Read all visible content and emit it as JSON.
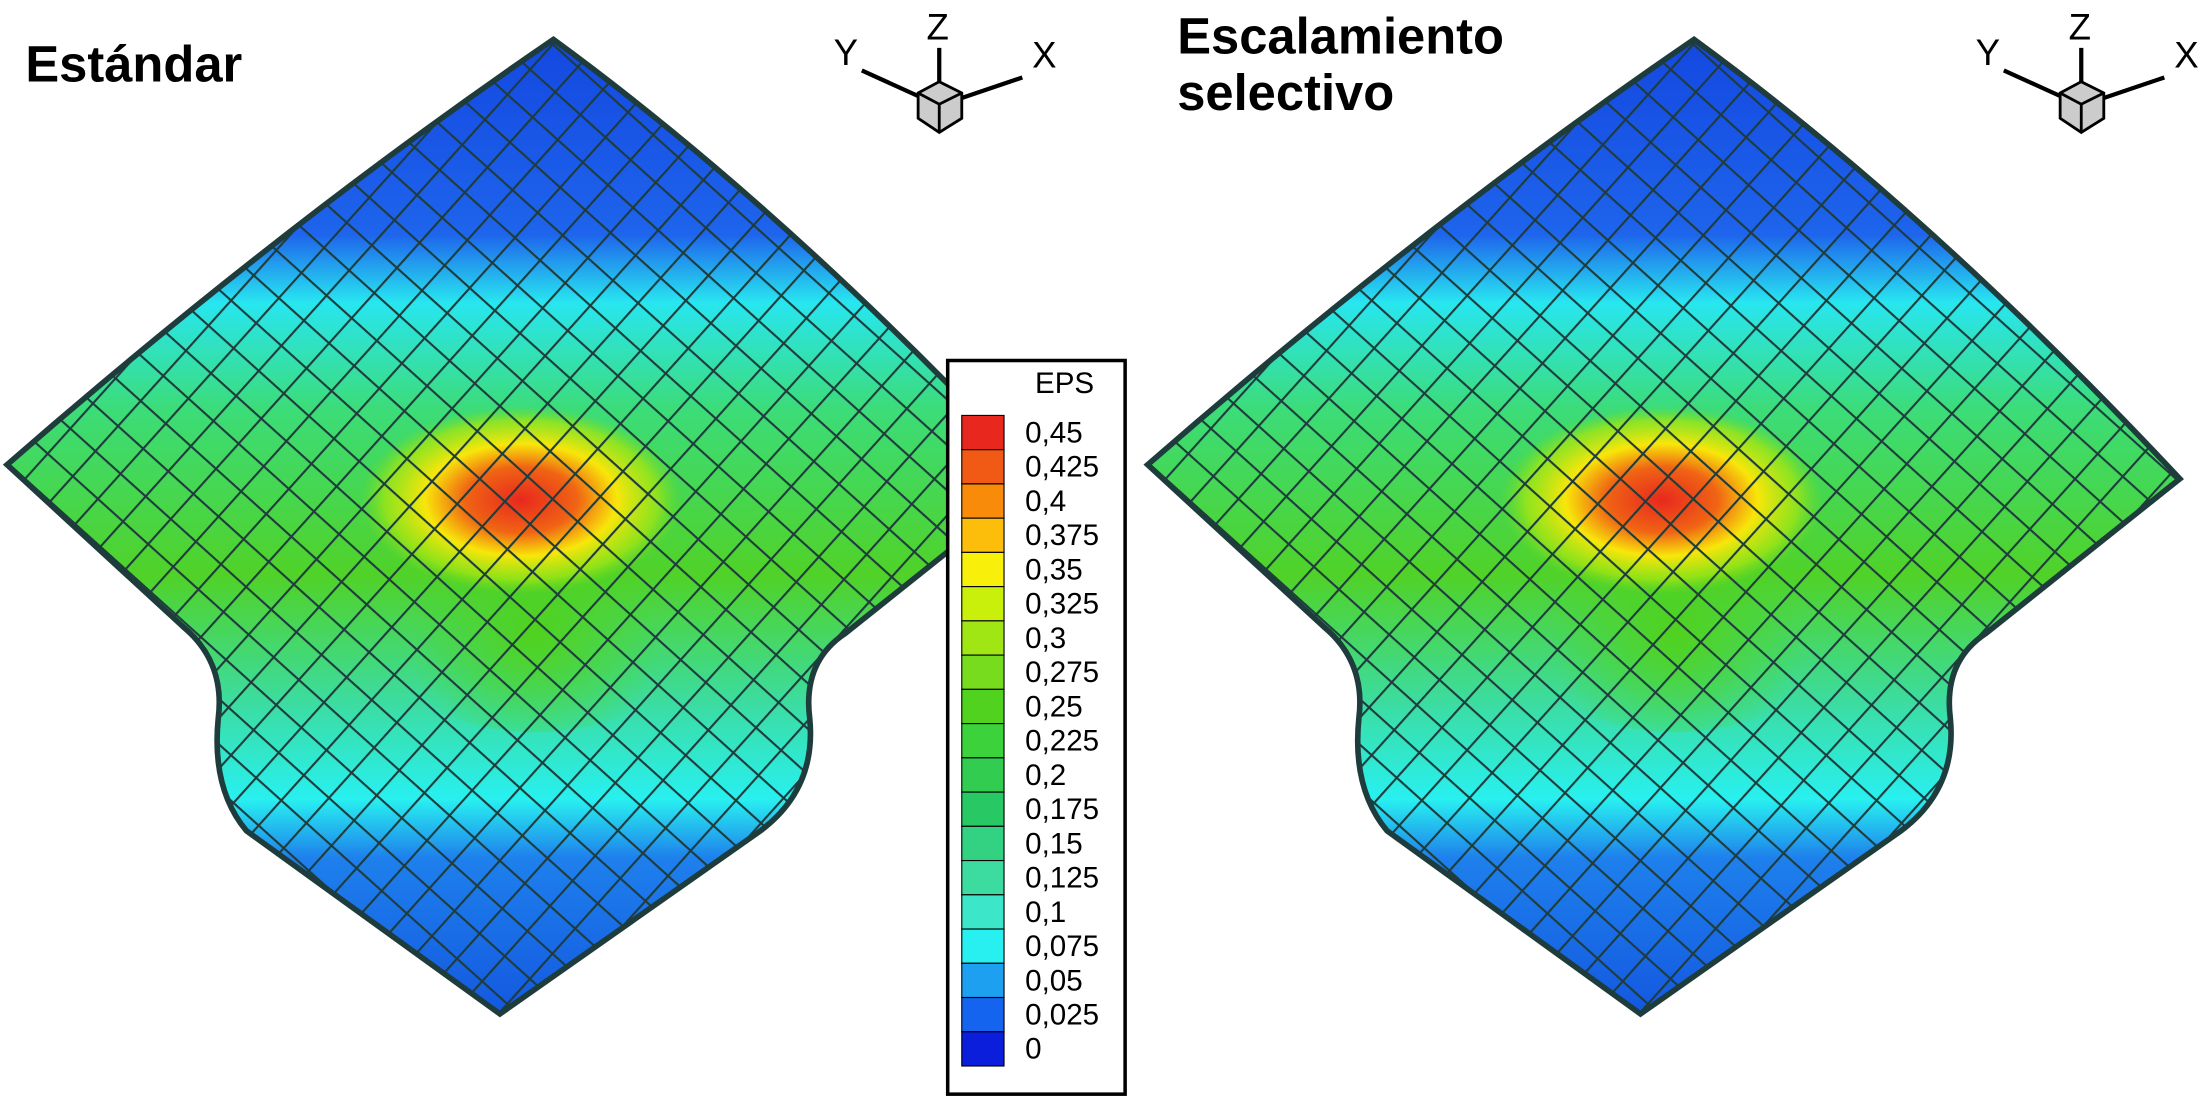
{
  "panels": [
    {
      "title_lines": [
        "Estándar"
      ],
      "axes": {
        "y": "Y",
        "z": "Z",
        "x": "X"
      }
    },
    {
      "title_lines": [
        "Escalamiento",
        "selectivo"
      ],
      "axes": {
        "y": "Y",
        "z": "Z",
        "x": "X"
      }
    }
  ],
  "legend": {
    "title": "EPS",
    "items": [
      {
        "label": "0,45",
        "color": "#e8281e"
      },
      {
        "label": "0,425",
        "color": "#f05a14"
      },
      {
        "label": "0,4",
        "color": "#f88c0a"
      },
      {
        "label": "0,375",
        "color": "#fcbe0a"
      },
      {
        "label": "0,35",
        "color": "#f8f00a"
      },
      {
        "label": "0,325",
        "color": "#c8f00a"
      },
      {
        "label": "0,3",
        "color": "#a0e614"
      },
      {
        "label": "0,275",
        "color": "#78dc1e"
      },
      {
        "label": "0,25",
        "color": "#50d21e"
      },
      {
        "label": "0,225",
        "color": "#3cd23c"
      },
      {
        "label": "0,2",
        "color": "#32cd50"
      },
      {
        "label": "0,175",
        "color": "#28c864"
      },
      {
        "label": "0,15",
        "color": "#32d282"
      },
      {
        "label": "0,125",
        "color": "#3cdca0"
      },
      {
        "label": "0,1",
        "color": "#3ce6c8"
      },
      {
        "label": "0,075",
        "color": "#28f0f0"
      },
      {
        "label": "0,05",
        "color": "#1ea0f0"
      },
      {
        "label": "0,025",
        "color": "#1464f0"
      },
      {
        "label": "0",
        "color": "#0a1edc"
      }
    ]
  }
}
